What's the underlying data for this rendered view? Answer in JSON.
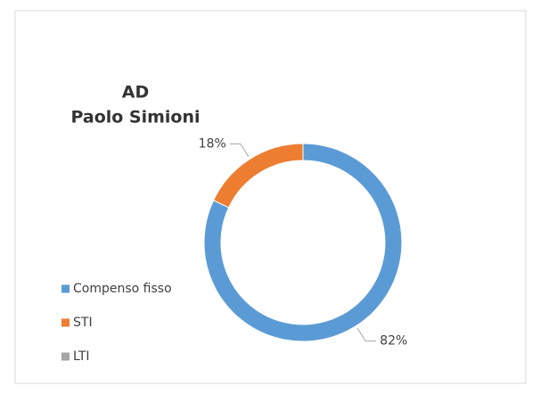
{
  "chart_data": {
    "type": "donut",
    "title": [
      "AD",
      "Paolo Simioni"
    ],
    "categories": [
      "Compenso fisso",
      "STI",
      "LTI"
    ],
    "values": [
      82,
      18,
      0
    ],
    "value_labels": [
      "82%",
      "18%",
      null
    ],
    "colors": [
      "#5b9bd5",
      "#ed7d31",
      "#a5a5a5"
    ],
    "legend": "left"
  }
}
